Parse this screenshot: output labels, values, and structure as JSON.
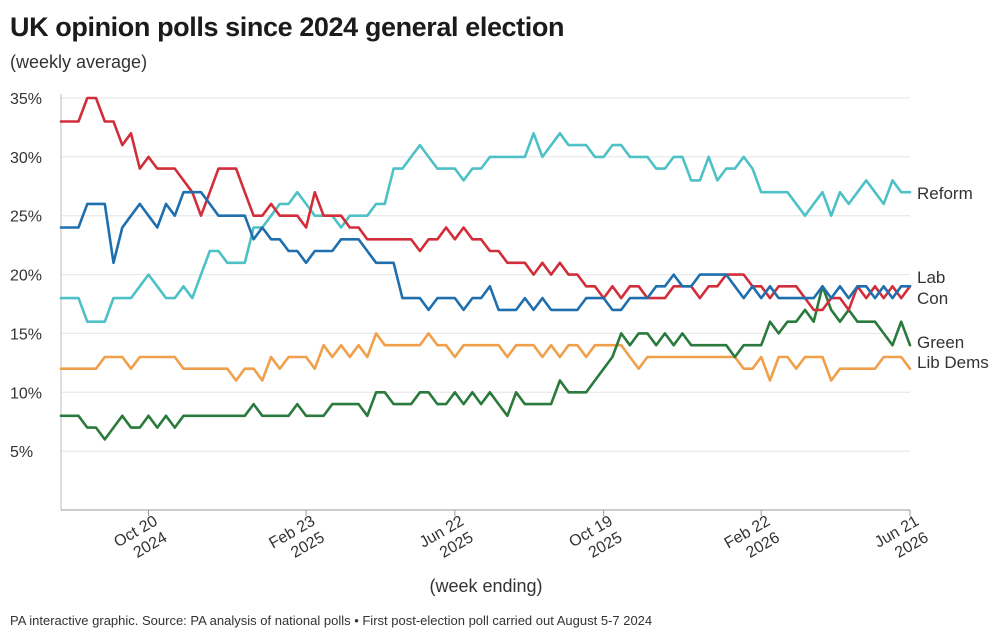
{
  "header": {
    "title": "UK opinion polls since 2024 general election",
    "subtitle": "(weekly average)"
  },
  "footer": {
    "note": "PA interactive graphic. Source: PA analysis of national polls • First post-election poll carried out August 5-7 2024"
  },
  "chart_data": {
    "type": "line",
    "title": "UK opinion polls since 2024 general election",
    "subtitle": "(weekly average)",
    "xlabel": "(week ending)",
    "ylabel": "",
    "ylim": [
      0,
      35
    ],
    "yticks": [
      {
        "value": 5,
        "label": "5%"
      },
      {
        "value": 10,
        "label": "10%"
      },
      {
        "value": 15,
        "label": "15%"
      },
      {
        "value": 20,
        "label": "20%"
      },
      {
        "value": 25,
        "label": "25%"
      },
      {
        "value": 30,
        "label": "30%"
      },
      {
        "value": 35,
        "label": "35%"
      }
    ],
    "xticks": [
      {
        "week": 10,
        "line1": "Oct 20",
        "line2": "2024"
      },
      {
        "week": 28,
        "line1": "Feb 23",
        "line2": "2025"
      },
      {
        "week": 45,
        "line1": "Jun 22",
        "line2": "2025"
      },
      {
        "week": 62,
        "line1": "Oct 19",
        "line2": "2025"
      },
      {
        "week": 80,
        "line1": "Feb 22",
        "line2": "2026"
      },
      {
        "week": 97,
        "line1": "Jun 21",
        "line2": "2026"
      }
    ],
    "x_first_week_ending": "Aug 11 2024",
    "x_last_week_ending": "Jun 21 2026",
    "grid": true,
    "legend": "end-of-line labels",
    "series": [
      {
        "name": "Reform",
        "color": "#4dc1c6",
        "values": [
          18,
          18,
          18,
          16,
          16,
          16,
          18,
          18,
          18,
          19,
          20,
          19,
          18,
          18,
          19,
          18,
          20,
          22,
          22,
          21,
          21,
          21,
          24,
          24,
          25,
          26,
          26,
          27,
          26,
          25,
          25,
          25,
          24,
          25,
          25,
          25,
          26,
          26,
          29,
          29,
          30,
          31,
          30,
          29,
          29,
          29,
          28,
          29,
          29,
          30,
          30,
          30,
          30,
          30,
          32,
          30,
          31,
          32,
          31,
          31,
          31,
          30,
          30,
          31,
          31,
          30,
          30,
          30,
          29,
          29,
          30,
          30,
          28,
          28,
          30,
          28,
          29,
          29,
          30,
          29,
          27,
          27,
          27,
          27,
          26,
          25,
          26,
          27,
          25,
          27,
          26,
          27,
          28,
          27,
          26,
          28,
          27,
          27
        ]
      },
      {
        "name": "Lab",
        "color": "#1f6fae",
        "values": [
          24,
          24,
          24,
          26,
          26,
          26,
          21,
          24,
          25,
          26,
          25,
          24,
          26,
          25,
          27,
          27,
          27,
          26,
          25,
          25,
          25,
          25,
          23,
          24,
          23,
          23,
          22,
          22,
          21,
          22,
          22,
          22,
          23,
          23,
          23,
          22,
          21,
          21,
          21,
          18,
          18,
          18,
          17,
          18,
          18,
          18,
          17,
          18,
          18,
          19,
          17,
          17,
          17,
          18,
          17,
          18,
          17,
          17,
          17,
          17,
          18,
          18,
          18,
          17,
          17,
          18,
          18,
          18,
          19,
          19,
          20,
          19,
          19,
          20,
          20,
          20,
          20,
          19,
          18,
          19,
          18,
          19,
          18,
          18,
          18,
          18,
          18,
          19,
          18,
          19,
          18,
          19,
          19,
          18,
          19,
          18,
          19,
          19
        ]
      },
      {
        "name": "Con",
        "color": "#d12e3a",
        "values": [
          33,
          33,
          33,
          35,
          35,
          33,
          33,
          31,
          32,
          29,
          30,
          29,
          29,
          29,
          28,
          27,
          25,
          27,
          29,
          29,
          29,
          27,
          25,
          25,
          26,
          25,
          25,
          25,
          24,
          27,
          25,
          25,
          25,
          24,
          24,
          23,
          23,
          23,
          23,
          23,
          23,
          22,
          23,
          23,
          24,
          23,
          24,
          23,
          23,
          22,
          22,
          21,
          21,
          21,
          20,
          21,
          20,
          21,
          20,
          20,
          19,
          19,
          18,
          19,
          18,
          19,
          19,
          18,
          18,
          18,
          19,
          19,
          19,
          18,
          19,
          19,
          20,
          20,
          20,
          19,
          19,
          18,
          19,
          19,
          19,
          18,
          17,
          17,
          18,
          18,
          17,
          19,
          18,
          19,
          18,
          19,
          18,
          19
        ]
      },
      {
        "name": "Green",
        "color": "#2b7a3d",
        "values": [
          8,
          8,
          8,
          7,
          7,
          6,
          7,
          8,
          7,
          7,
          8,
          7,
          8,
          7,
          8,
          8,
          8,
          8,
          8,
          8,
          8,
          8,
          9,
          8,
          8,
          8,
          8,
          9,
          8,
          8,
          8,
          9,
          9,
          9,
          9,
          8,
          10,
          10,
          9,
          9,
          9,
          10,
          10,
          9,
          9,
          10,
          9,
          10,
          9,
          10,
          9,
          8,
          10,
          9,
          9,
          9,
          9,
          11,
          10,
          10,
          10,
          11,
          12,
          13,
          15,
          14,
          15,
          15,
          14,
          15,
          14,
          15,
          14,
          14,
          14,
          14,
          14,
          13,
          14,
          14,
          14,
          16,
          15,
          16,
          16,
          17,
          16,
          19,
          17,
          16,
          17,
          16,
          16,
          16,
          15,
          14,
          16,
          14
        ]
      },
      {
        "name": "Lib Dems",
        "color": "#f0a04b",
        "values": [
          12,
          12,
          12,
          12,
          12,
          13,
          13,
          13,
          12,
          13,
          13,
          13,
          13,
          13,
          12,
          12,
          12,
          12,
          12,
          12,
          11,
          12,
          12,
          11,
          13,
          12,
          13,
          13,
          13,
          12,
          14,
          13,
          14,
          13,
          14,
          13,
          15,
          14,
          14,
          14,
          14,
          14,
          15,
          14,
          14,
          13,
          14,
          14,
          14,
          14,
          14,
          13,
          14,
          14,
          14,
          13,
          14,
          13,
          14,
          14,
          13,
          14,
          14,
          14,
          14,
          13,
          12,
          13,
          13,
          13,
          13,
          13,
          13,
          13,
          13,
          13,
          13,
          13,
          12,
          12,
          13,
          11,
          13,
          13,
          12,
          13,
          13,
          13,
          11,
          12,
          12,
          12,
          12,
          12,
          13,
          13,
          13,
          12
        ]
      }
    ],
    "end_labels": [
      {
        "series": "Reform",
        "text": "Reform"
      },
      {
        "series": "Lab",
        "text": "Lab"
      },
      {
        "series": "Con",
        "text": "Con"
      },
      {
        "series": "Green",
        "text": "Green"
      },
      {
        "series": "Lib Dems",
        "text": "Lib Dems"
      }
    ]
  }
}
